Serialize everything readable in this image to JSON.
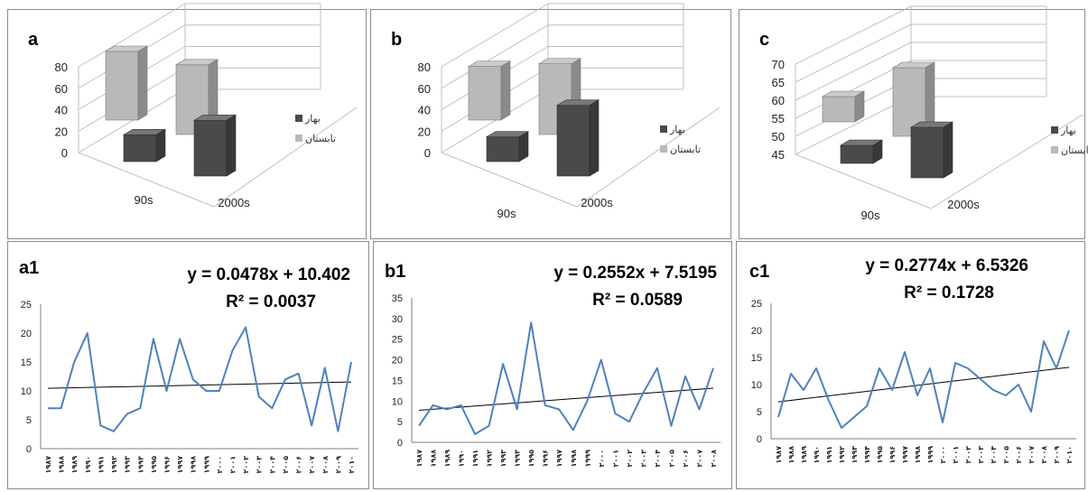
{
  "legend": {
    "spring": "بهار",
    "summer": "تابستان"
  },
  "colors": {
    "spring": "#4a4a4a",
    "summer": "#b9b9b9",
    "line": "#4f81bd",
    "trend": "#000000",
    "grid": "#bfbfbf",
    "axis": "#7f7f7f"
  },
  "top_panels": [
    {
      "label": "a",
      "yticks": [
        "0",
        "20",
        "40",
        "60",
        "80"
      ]
    },
    {
      "label": "b",
      "yticks": [
        "0",
        "20",
        "40",
        "60",
        "80"
      ]
    },
    {
      "label": "c",
      "yticks": [
        "45",
        "50",
        "55",
        "60",
        "65",
        "70"
      ]
    }
  ],
  "bottom_panels": [
    {
      "label": "a1",
      "eq": "y = 0.0478x + 10.402",
      "r2": "R² = 0.0037",
      "yticks": [
        "0",
        "5",
        "10",
        "15",
        "20",
        "25"
      ],
      "xticks": [
        "۱۹۸۷",
        "۱۹۸۸",
        "۱۹۸۹",
        "۱۹۹۰",
        "۱۹۹۱",
        "۱۹۹۲",
        "۱۹۹۳",
        "۱۹۹۴",
        "۱۹۹۵",
        "۱۹۹۶",
        "۱۹۹۷",
        "۱۹۹۸",
        "۱۹۹۹",
        "۲۰۰۰",
        "۲۰۰۱",
        "۲۰۰۲",
        "۲۰۰۳",
        "۲۰۰۴",
        "۲۰۰۵",
        "۲۰۰۶",
        "۲۰۰۷",
        "۲۰۰۸",
        "۲۰۰۹",
        "۲۰۱۰"
      ]
    },
    {
      "label": "b1",
      "eq": "y = 0.2552x + 7.5195",
      "r2": "R² = 0.0589",
      "yticks": [
        "0",
        "5",
        "10",
        "15",
        "20",
        "25",
        "30",
        "35"
      ],
      "xticks": [
        "۱۹۸۷",
        "۱۹۸۸",
        "۱۹۸۹",
        "۱۹۹۰",
        "۱۹۹۱",
        "۱۹۹۲",
        "۱۹۹۳",
        "۱۹۹۴",
        "۱۹۹۵",
        "۱۹۹۶",
        "۱۹۹۷",
        "۱۹۹۸",
        "۱۹۹۹",
        "۲۰۰۰",
        "۲۰۰۱",
        "۲۰۰۲",
        "۲۰۰۳",
        "۲۰۰۴",
        "۲۰۰۵",
        "۲۰۰۶",
        "۲۰۰۷",
        "۲۰۰۸"
      ]
    },
    {
      "label": "c1",
      "eq": "y = 0.2774x + 6.5326",
      "r2": "R² = 0.1728",
      "yticks": [
        "0",
        "5",
        "10",
        "15",
        "20",
        "25"
      ],
      "xticks": [
        "۱۹۸۷",
        "۱۹۸۸",
        "۱۹۸۹",
        "۱۹۹۰",
        "۱۹۹۱",
        "۱۹۹۲",
        "۱۹۹۳",
        "۱۹۹۴",
        "۱۹۹۵",
        "۱۹۹۶",
        "۱۹۹۷",
        "۱۹۹۸",
        "۱۹۹۹",
        "۲۰۰۰",
        "۲۰۰۱",
        "۲۰۰۲",
        "۲۰۰۳",
        "۲۰۰۴",
        "۲۰۰۵",
        "۲۰۰۶",
        "۲۰۰۷",
        "۲۰۰۸",
        "۲۰۰۹",
        "۲۰۱۰"
      ]
    }
  ],
  "chart_data": [
    {
      "type": "bar",
      "panel": "a",
      "categories": [
        "90s",
        "2000s"
      ],
      "series": [
        {
          "name": "بهار",
          "values": [
            25,
            52
          ]
        },
        {
          "name": "تابستان",
          "values": [
            64,
            65
          ]
        }
      ],
      "ylim": [
        0,
        80
      ],
      "grid": true,
      "legend_position": "right"
    },
    {
      "type": "bar",
      "panel": "b",
      "categories": [
        "90s",
        "2000s"
      ],
      "series": [
        {
          "name": "بهار",
          "values": [
            23,
            66
          ]
        },
        {
          "name": "تابستان",
          "values": [
            50,
            66
          ]
        }
      ],
      "ylim": [
        0,
        80
      ],
      "grid": true,
      "legend_position": "right"
    },
    {
      "type": "bar",
      "panel": "c",
      "categories": [
        "90s",
        "2000s"
      ],
      "series": [
        {
          "name": "بهار",
          "values": [
            50,
            59
          ]
        },
        {
          "name": "تابستان",
          "values": [
            52,
            64
          ]
        }
      ],
      "ylim": [
        45,
        70
      ],
      "grid": true,
      "legend_position": "right"
    },
    {
      "type": "line",
      "panel": "a1",
      "x": [
        "1987",
        "1988",
        "1989",
        "1990",
        "1991",
        "1992",
        "1993",
        "1994",
        "1995",
        "1996",
        "1997",
        "1998",
        "1999",
        "2000",
        "2001",
        "2002",
        "2003",
        "2004",
        "2005",
        "2006",
        "2007",
        "2008",
        "2009",
        "2010"
      ],
      "series": [
        {
          "values": [
            7,
            7,
            15,
            20,
            4,
            3,
            6,
            7,
            19,
            10,
            19,
            12,
            10,
            10,
            17,
            21,
            9,
            7,
            12,
            13,
            4,
            14,
            3,
            15
          ]
        }
      ],
      "trendline": {
        "slope": 0.0478,
        "intercept": 10.402,
        "r2": 0.0037
      },
      "ylim": [
        0,
        25
      ],
      "grid": false
    },
    {
      "type": "line",
      "panel": "b1",
      "x": [
        "1987",
        "1988",
        "1989",
        "1990",
        "1991",
        "1992",
        "1993",
        "1994",
        "1995",
        "1996",
        "1997",
        "1998",
        "1999",
        "2000",
        "2001",
        "2002",
        "2003",
        "2004",
        "2005",
        "2006",
        "2007",
        "2008"
      ],
      "series": [
        {
          "values": [
            4,
            9,
            8,
            9,
            2,
            4,
            19,
            8,
            29,
            9,
            8,
            3,
            10,
            20,
            7,
            5,
            12,
            18,
            4,
            16,
            8,
            18
          ]
        }
      ],
      "trendline": {
        "slope": 0.2552,
        "intercept": 7.5195,
        "r2": 0.0589
      },
      "ylim": [
        0,
        35
      ],
      "grid": false
    },
    {
      "type": "line",
      "panel": "c1",
      "x": [
        "1987",
        "1988",
        "1989",
        "1990",
        "1991",
        "1992",
        "1993",
        "1994",
        "1995",
        "1996",
        "1997",
        "1998",
        "1999",
        "2000",
        "2001",
        "2002",
        "2003",
        "2004",
        "2005",
        "2006",
        "2007",
        "2008",
        "2009",
        "2010"
      ],
      "series": [
        {
          "values": [
            4,
            12,
            9,
            13,
            7,
            2,
            4,
            6,
            13,
            9,
            16,
            8,
            13,
            3,
            14,
            13,
            11,
            9,
            8,
            10,
            5,
            18,
            13,
            20
          ]
        }
      ],
      "trendline": {
        "slope": 0.2774,
        "intercept": 6.5326,
        "r2": 0.1728
      },
      "ylim": [
        0,
        25
      ],
      "grid": false
    }
  ]
}
